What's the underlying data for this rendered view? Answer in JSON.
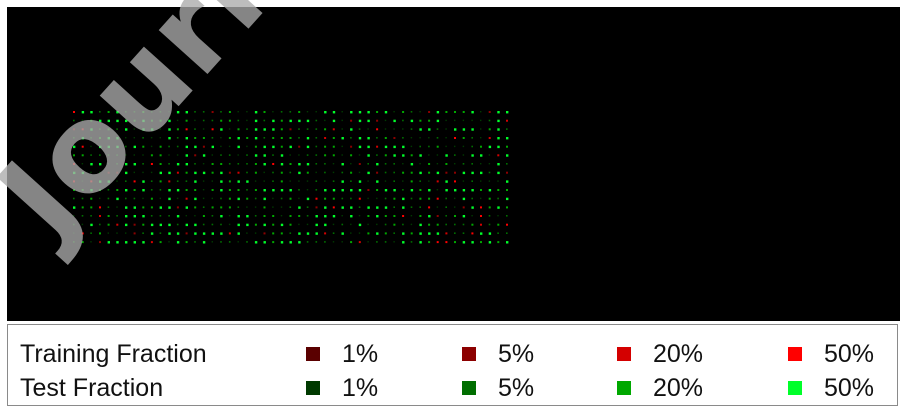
{
  "watermark": "Journal",
  "legend": {
    "training": {
      "label": "Training Fraction",
      "items": [
        {
          "text": "1%",
          "color": "#5a0000"
        },
        {
          "text": "5%",
          "color": "#8c0000"
        },
        {
          "text": "20%",
          "color": "#d40000"
        },
        {
          "text": "50%",
          "color": "#ff0000"
        }
      ]
    },
    "test": {
      "label": "Test Fraction",
      "items": [
        {
          "text": "1%",
          "color": "#003a00"
        },
        {
          "text": "5%",
          "color": "#006e00"
        },
        {
          "text": "20%",
          "color": "#00a800"
        },
        {
          "text": "50%",
          "color": "#00ff2a"
        }
      ]
    }
  }
}
